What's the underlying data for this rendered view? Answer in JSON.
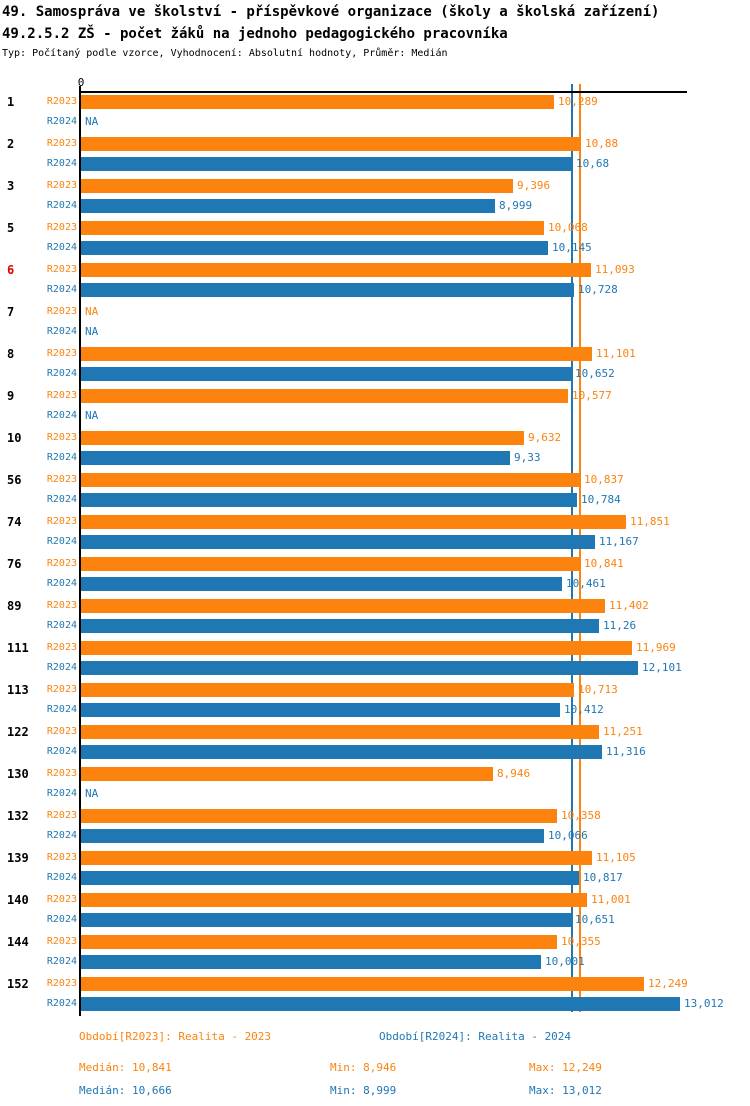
{
  "header": {
    "title_line1": "49. Samospráva ve školství - příspěvkové organizace (školy a školská zařízení)",
    "title_line2": "49.2.5.2 ZŠ - počet žáků na jednoho pedagogického pracovníka",
    "subtitle": "Typ: Počítaný podle vzorce, Vyhodnocení: Absolutní hodnoty, Průměr: Medián"
  },
  "colors": {
    "r2023": "#fb830e",
    "r2024": "#1f77b4",
    "highlight_row_number": "#dd0000",
    "row_number": "#000000",
    "axis": "#000000"
  },
  "chart_data": {
    "type": "bar",
    "orientation": "horizontal",
    "title": "49.2.5.2 ZŠ - počet žáků na jednoho pedagogického pracovníka",
    "value_axis_origin_label": "0",
    "series_names": [
      "R2023",
      "R2024"
    ],
    "legend_position": "bottom",
    "reference_lines": [
      {
        "name": "median-r2024",
        "series": "R2024",
        "value": 10.666
      },
      {
        "name": "median-r2023",
        "series": "R2023",
        "value": 10.841
      }
    ],
    "groups": [
      {
        "id": "1",
        "highlighted": false,
        "r2023": 10.289,
        "r2023_label": "10,289",
        "r2024": null,
        "r2024_label": "NA"
      },
      {
        "id": "2",
        "highlighted": false,
        "r2023": 10.88,
        "r2023_label": "10,88",
        "r2024": 10.68,
        "r2024_label": "10,68"
      },
      {
        "id": "3",
        "highlighted": false,
        "r2023": 9.396,
        "r2023_label": "9,396",
        "r2024": 8.999,
        "r2024_label": "8,999"
      },
      {
        "id": "5",
        "highlighted": false,
        "r2023": 10.068,
        "r2023_label": "10,068",
        "r2024": 10.145,
        "r2024_label": "10,145"
      },
      {
        "id": "6",
        "highlighted": true,
        "r2023": 11.093,
        "r2023_label": "11,093",
        "r2024": 10.728,
        "r2024_label": "10,728"
      },
      {
        "id": "7",
        "highlighted": false,
        "r2023": null,
        "r2023_label": "NA",
        "r2024": null,
        "r2024_label": "NA"
      },
      {
        "id": "8",
        "highlighted": false,
        "r2023": 11.101,
        "r2023_label": "11,101",
        "r2024": 10.652,
        "r2024_label": "10,652"
      },
      {
        "id": "9",
        "highlighted": false,
        "r2023": 10.577,
        "r2023_label": "10,577",
        "r2024": null,
        "r2024_label": "NA"
      },
      {
        "id": "10",
        "highlighted": false,
        "r2023": 9.632,
        "r2023_label": "9,632",
        "r2024": 9.33,
        "r2024_label": "9,33"
      },
      {
        "id": "56",
        "highlighted": false,
        "r2023": 10.837,
        "r2023_label": "10,837",
        "r2024": 10.784,
        "r2024_label": "10,784"
      },
      {
        "id": "74",
        "highlighted": false,
        "r2023": 11.851,
        "r2023_label": "11,851",
        "r2024": 11.167,
        "r2024_label": "11,167"
      },
      {
        "id": "76",
        "highlighted": false,
        "r2023": 10.841,
        "r2023_label": "10,841",
        "r2024": 10.461,
        "r2024_label": "10,461"
      },
      {
        "id": "89",
        "highlighted": false,
        "r2023": 11.402,
        "r2023_label": "11,402",
        "r2024": 11.26,
        "r2024_label": "11,26"
      },
      {
        "id": "111",
        "highlighted": false,
        "r2023": 11.969,
        "r2023_label": "11,969",
        "r2024": 12.101,
        "r2024_label": "12,101"
      },
      {
        "id": "113",
        "highlighted": false,
        "r2023": 10.713,
        "r2023_label": "10,713",
        "r2024": 10.412,
        "r2024_label": "10,412"
      },
      {
        "id": "122",
        "highlighted": false,
        "r2023": 11.251,
        "r2023_label": "11,251",
        "r2024": 11.316,
        "r2024_label": "11,316"
      },
      {
        "id": "130",
        "highlighted": false,
        "r2023": 8.946,
        "r2023_label": "8,946",
        "r2024": null,
        "r2024_label": "NA"
      },
      {
        "id": "132",
        "highlighted": false,
        "r2023": 10.358,
        "r2023_label": "10,358",
        "r2024": 10.066,
        "r2024_label": "10,066"
      },
      {
        "id": "139",
        "highlighted": false,
        "r2023": 11.105,
        "r2023_label": "11,105",
        "r2024": 10.817,
        "r2024_label": "10,817"
      },
      {
        "id": "140",
        "highlighted": false,
        "r2023": 11.001,
        "r2023_label": "11,001",
        "r2024": 10.651,
        "r2024_label": "10,651"
      },
      {
        "id": "144",
        "highlighted": false,
        "r2023": 10.355,
        "r2023_label": "10,355",
        "r2024": 10.001,
        "r2024_label": "10,001"
      },
      {
        "id": "152",
        "highlighted": false,
        "r2023": 12.249,
        "r2023_label": "12,249",
        "r2024": 13.012,
        "r2024_label": "13,012"
      }
    ]
  },
  "footer": {
    "legend": [
      {
        "series": "R2023",
        "label": "Období[R2023]: Realita - 2023"
      },
      {
        "series": "R2024",
        "label": "Období[R2024]: Realita - 2024"
      }
    ],
    "stats": [
      {
        "series": "R2023",
        "median": "Medián: 10,841",
        "min": "Min: 8,946",
        "max": "Max: 12,249"
      },
      {
        "series": "R2024",
        "median": "Medián: 10,666",
        "min": "Min: 8,999",
        "max": "Max: 13,012"
      }
    ]
  }
}
